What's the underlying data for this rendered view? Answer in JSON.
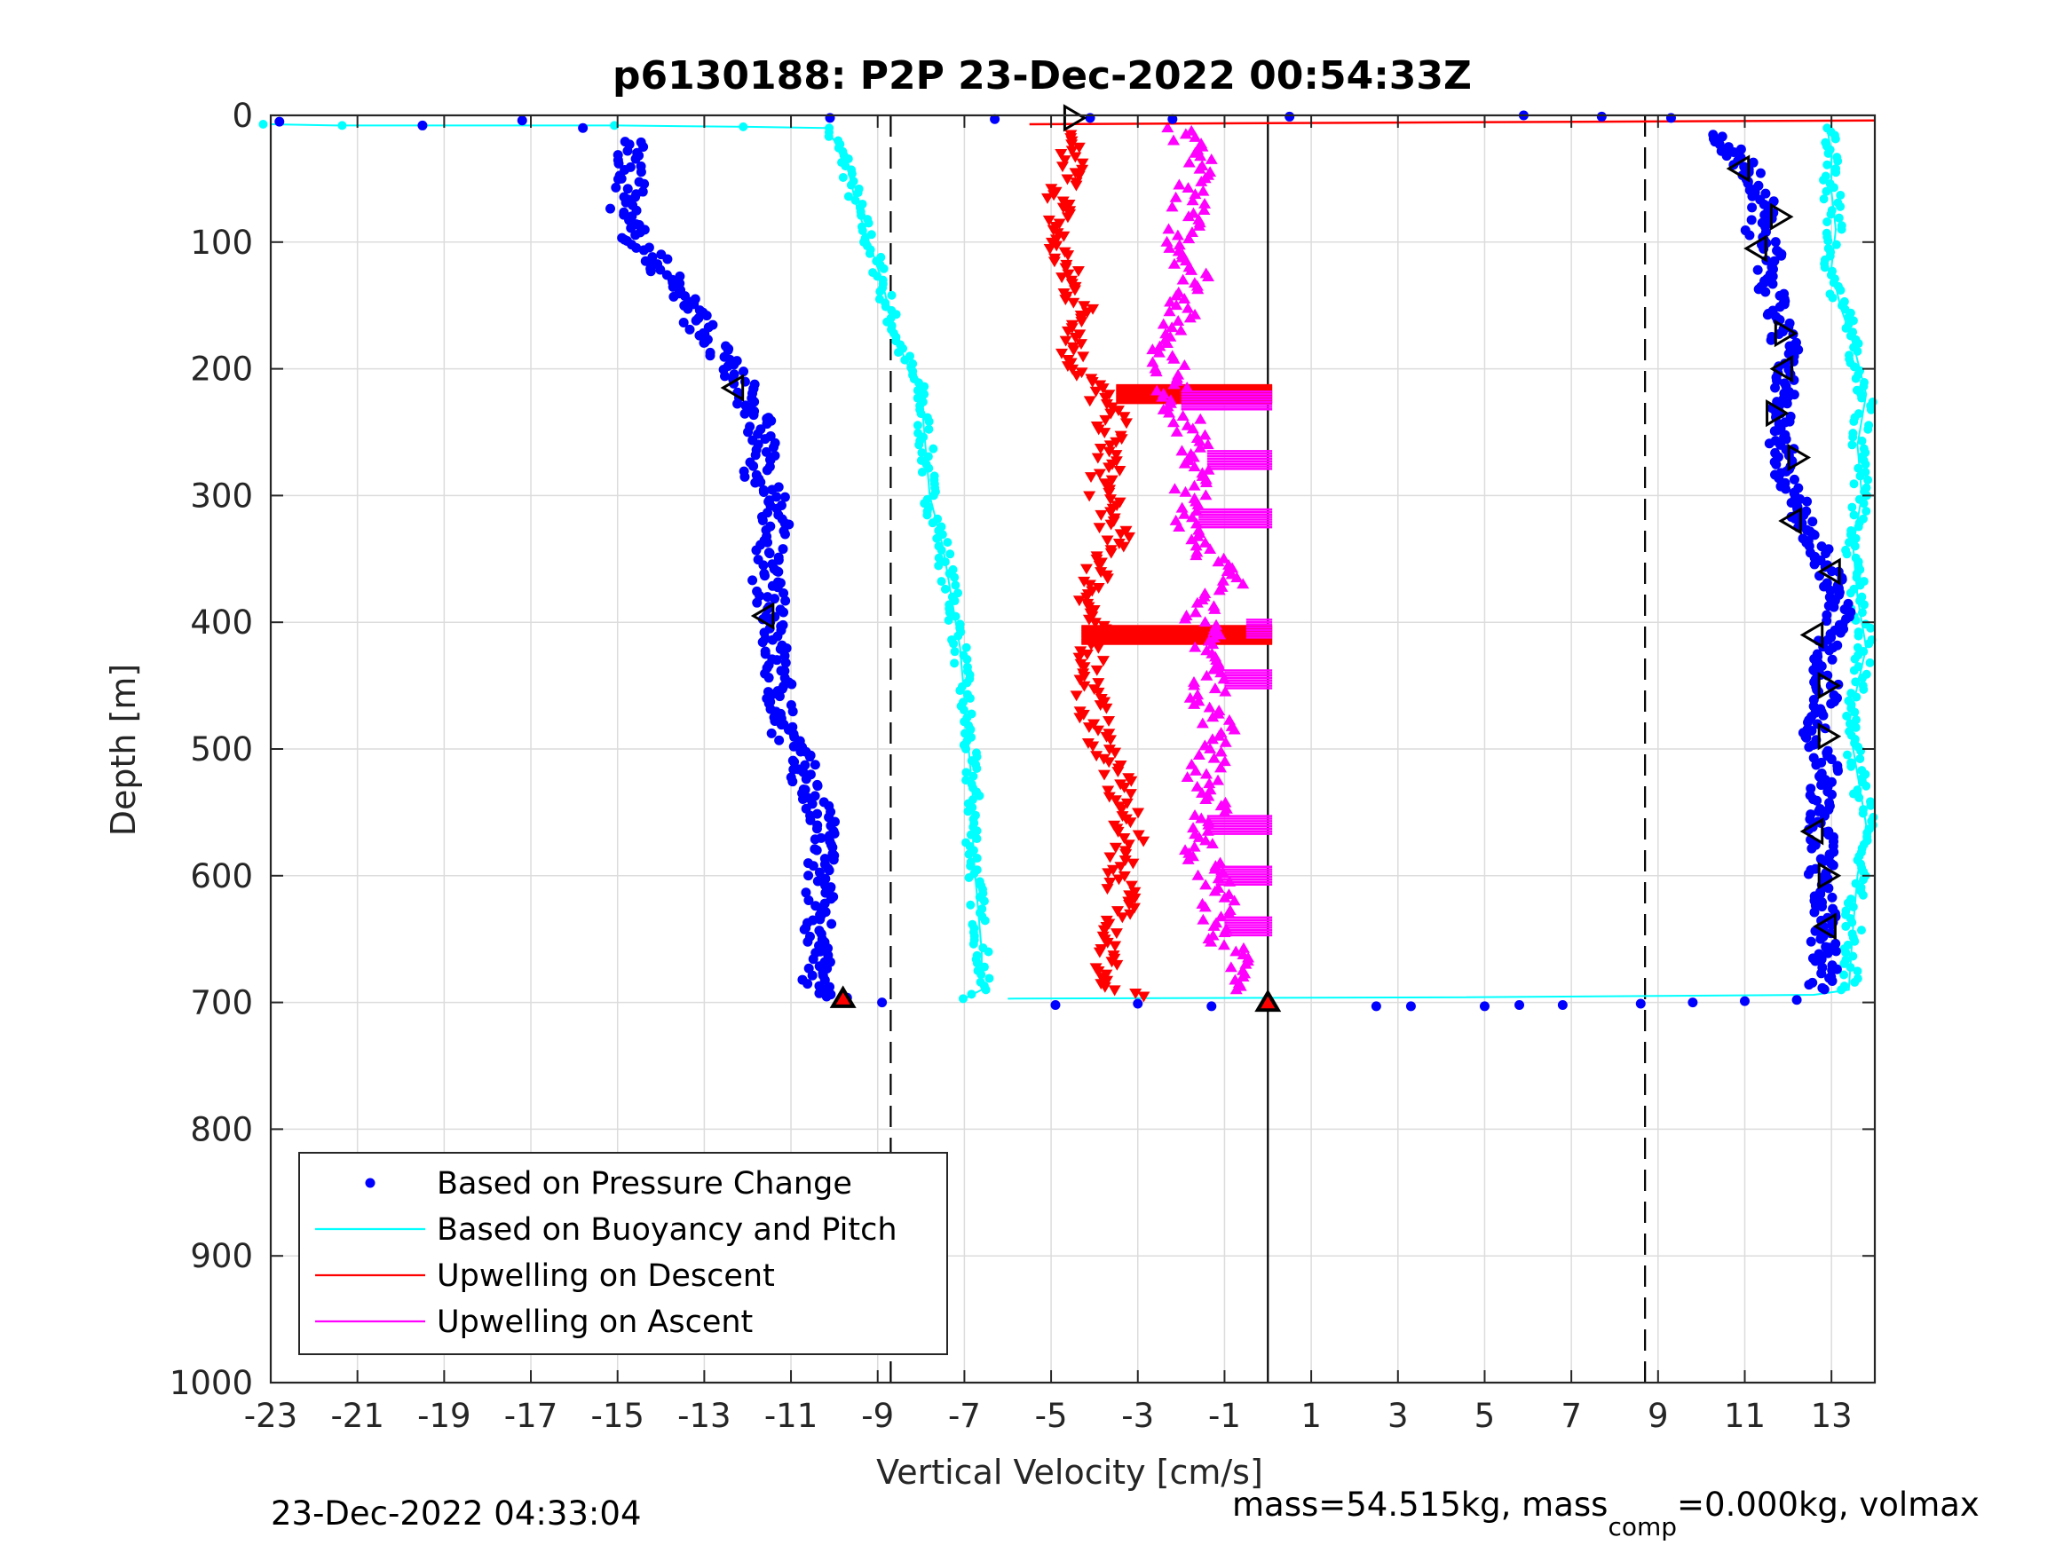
{
  "chart_data": {
    "type": "scatter",
    "title": "p6130188: P2P 23-Dec-2022 00:54:33Z",
    "xlabel": "Vertical Velocity [cm/s]",
    "ylabel": "Depth [m]",
    "xlim": [
      -23,
      14
    ],
    "ylim": [
      0,
      1000
    ],
    "y_reversed": true,
    "xticks": [
      -23,
      -21,
      -19,
      -17,
      -15,
      -13,
      -11,
      -9,
      -7,
      -5,
      -3,
      -1,
      1,
      3,
      5,
      7,
      9,
      11,
      13
    ],
    "yticks": [
      0,
      100,
      200,
      300,
      400,
      500,
      600,
      700,
      800,
      900,
      1000
    ],
    "grid": true,
    "legend_position": "bottom-left",
    "reference_lines": [
      {
        "x": -8.7,
        "style": "dashed",
        "color": "#000000"
      },
      {
        "x": 8.7,
        "style": "dashed",
        "color": "#000000"
      },
      {
        "x": 0,
        "style": "solid",
        "color": "#000000"
      }
    ],
    "series": [
      {
        "name": "Based on Pressure Change",
        "color": "#0000ff",
        "marker": "dot",
        "descent": [
          [
            -14.6,
            20
          ],
          [
            -14.8,
            40
          ],
          [
            -14.7,
            60
          ],
          [
            -14.9,
            80
          ],
          [
            -14.5,
            100
          ],
          [
            -14.0,
            120
          ],
          [
            -13.5,
            140
          ],
          [
            -13.2,
            160
          ],
          [
            -12.8,
            180
          ],
          [
            -12.5,
            200
          ],
          [
            -12.0,
            215
          ],
          [
            -11.8,
            240
          ],
          [
            -11.6,
            260
          ],
          [
            -11.8,
            280
          ],
          [
            -11.5,
            300
          ],
          [
            -11.3,
            320
          ],
          [
            -11.6,
            350
          ],
          [
            -11.5,
            380
          ],
          [
            -11.3,
            400
          ],
          [
            -11.4,
            420
          ],
          [
            -11.3,
            450
          ],
          [
            -11.2,
            480
          ],
          [
            -10.8,
            510
          ],
          [
            -10.5,
            540
          ],
          [
            -10.2,
            570
          ],
          [
            -10.4,
            600
          ],
          [
            -10.3,
            630
          ],
          [
            -10.4,
            660
          ],
          [
            -10.5,
            685
          ],
          [
            -9.8,
            697
          ]
        ],
        "ascent": [
          [
            12.7,
            690
          ],
          [
            12.9,
            670
          ],
          [
            12.8,
            650
          ],
          [
            12.9,
            630
          ],
          [
            12.7,
            610
          ],
          [
            12.8,
            590
          ],
          [
            12.8,
            570
          ],
          [
            12.7,
            550
          ],
          [
            12.8,
            530
          ],
          [
            12.9,
            510
          ],
          [
            12.6,
            490
          ],
          [
            12.8,
            470
          ],
          [
            12.9,
            450
          ],
          [
            12.8,
            430
          ],
          [
            13.0,
            410
          ],
          [
            13.2,
            390
          ],
          [
            13.0,
            370
          ],
          [
            12.8,
            350
          ],
          [
            12.5,
            330
          ],
          [
            12.3,
            310
          ],
          [
            12.0,
            290
          ],
          [
            11.8,
            270
          ],
          [
            11.9,
            250
          ],
          [
            11.8,
            230
          ],
          [
            11.9,
            210
          ],
          [
            12.0,
            190
          ],
          [
            11.8,
            170
          ],
          [
            11.7,
            150
          ],
          [
            11.5,
            130
          ],
          [
            11.6,
            110
          ],
          [
            11.3,
            90
          ],
          [
            11.5,
            70
          ],
          [
            11.2,
            50
          ],
          [
            10.8,
            30
          ],
          [
            10.2,
            15
          ]
        ],
        "surface_outliers": [
          [
            -22.8,
            5
          ],
          [
            -19.5,
            8
          ],
          [
            -17.2,
            4
          ],
          [
            -15.8,
            10
          ],
          [
            -10.1,
            2
          ],
          [
            -6.3,
            3
          ],
          [
            -4.1,
            2
          ],
          [
            -2.2,
            3
          ],
          [
            0.5,
            1
          ],
          [
            5.9,
            0
          ],
          [
            7.7,
            1
          ],
          [
            9.3,
            2
          ]
        ],
        "bottom_outliers": [
          [
            -8.9,
            700
          ],
          [
            -4.9,
            702
          ],
          [
            -3.0,
            701
          ],
          [
            -1.3,
            703
          ],
          [
            2.5,
            703
          ],
          [
            3.3,
            703
          ],
          [
            5.0,
            703
          ],
          [
            5.8,
            702
          ],
          [
            6.8,
            702
          ],
          [
            8.6,
            701
          ],
          [
            9.8,
            700
          ],
          [
            11.0,
            699
          ],
          [
            12.2,
            698
          ]
        ]
      },
      {
        "name": "Based on Buoyancy and Pitch",
        "color": "#00ffff",
        "marker": "dot-line",
        "descent": [
          [
            -23.0,
            7
          ],
          [
            -21.5,
            8
          ],
          [
            -15.0,
            8
          ],
          [
            -12.0,
            9
          ],
          [
            -10.2,
            10
          ],
          [
            -10.0,
            20
          ],
          [
            -9.7,
            40
          ],
          [
            -9.5,
            70
          ],
          [
            -9.2,
            100
          ],
          [
            -8.9,
            130
          ],
          [
            -8.7,
            160
          ],
          [
            -8.4,
            190
          ],
          [
            -8.0,
            220
          ],
          [
            -7.9,
            260
          ],
          [
            -7.8,
            300
          ],
          [
            -7.5,
            340
          ],
          [
            -7.3,
            380
          ],
          [
            -7.1,
            420
          ],
          [
            -7.0,
            460
          ],
          [
            -6.9,
            500
          ],
          [
            -6.8,
            540
          ],
          [
            -6.8,
            580
          ],
          [
            -6.7,
            620
          ],
          [
            -6.6,
            660
          ],
          [
            -6.6,
            690
          ],
          [
            -7.0,
            697
          ]
        ],
        "ascent": [
          [
            -6.0,
            697
          ],
          [
            4.0,
            696
          ],
          [
            12.6,
            694
          ],
          [
            13.4,
            690
          ],
          [
            13.5,
            640
          ],
          [
            13.6,
            600
          ],
          [
            13.8,
            560
          ],
          [
            13.6,
            520
          ],
          [
            13.4,
            480
          ],
          [
            13.8,
            420
          ],
          [
            13.6,
            380
          ],
          [
            13.5,
            340
          ],
          [
            13.7,
            300
          ],
          [
            13.6,
            260
          ],
          [
            13.8,
            220
          ],
          [
            13.5,
            180
          ],
          [
            13.2,
            150
          ],
          [
            13.0,
            120
          ],
          [
            13.1,
            90
          ],
          [
            13.0,
            60
          ],
          [
            13.0,
            30
          ],
          [
            12.9,
            10
          ]
        ]
      },
      {
        "name": "Upwelling on Descent",
        "color": "#ff0000",
        "marker": "triangle-down",
        "points": [
          [
            -4.8,
            15
          ],
          [
            -4.5,
            40
          ],
          [
            -4.8,
            70
          ],
          [
            -4.9,
            100
          ],
          [
            -4.6,
            130
          ],
          [
            -4.2,
            160
          ],
          [
            -4.5,
            190
          ],
          [
            -4.0,
            215
          ],
          [
            -3.6,
            240
          ],
          [
            -3.7,
            270
          ],
          [
            -3.8,
            300
          ],
          [
            -3.5,
            330
          ],
          [
            -3.9,
            360
          ],
          [
            -4.1,
            390
          ],
          [
            -4.0,
            420
          ],
          [
            -4.1,
            450
          ],
          [
            -4.0,
            480
          ],
          [
            -3.6,
            510
          ],
          [
            -3.4,
            540
          ],
          [
            -3.2,
            570
          ],
          [
            -3.4,
            600
          ],
          [
            -3.3,
            630
          ],
          [
            -3.7,
            660
          ],
          [
            -3.8,
            690
          ],
          [
            -2.8,
            695
          ]
        ],
        "spikes": [
          [
            -3.5,
            220
          ],
          [
            -4.3,
            410
          ]
        ]
      },
      {
        "name": "Upwelling on Ascent",
        "color": "#ff00ff",
        "marker": "triangle-up",
        "points": [
          [
            -2.2,
            10
          ],
          [
            -1.5,
            40
          ],
          [
            -1.8,
            70
          ],
          [
            -2.0,
            100
          ],
          [
            -1.6,
            130
          ],
          [
            -2.1,
            160
          ],
          [
            -2.3,
            190
          ],
          [
            -2.2,
            220
          ],
          [
            -1.8,
            250
          ],
          [
            -1.6,
            280
          ],
          [
            -1.9,
            310
          ],
          [
            -1.4,
            340
          ],
          [
            -0.9,
            370
          ],
          [
            -1.6,
            400
          ],
          [
            -1.2,
            430
          ],
          [
            -1.4,
            460
          ],
          [
            -1.0,
            490
          ],
          [
            -1.5,
            520
          ],
          [
            -1.3,
            550
          ],
          [
            -1.6,
            580
          ],
          [
            -1.1,
            610
          ],
          [
            -1.2,
            640
          ],
          [
            -0.7,
            670
          ],
          [
            -0.8,
            690
          ]
        ],
        "spikes": [
          [
            -2.0,
            225
          ],
          [
            -1.4,
            272
          ],
          [
            -1.6,
            318
          ],
          [
            -0.5,
            405
          ],
          [
            -1.0,
            445
          ],
          [
            -1.4,
            560
          ],
          [
            -1.2,
            600
          ],
          [
            -1.0,
            640
          ]
        ]
      }
    ],
    "surface_line": {
      "color": "#ff0000",
      "from": [
        -5.5,
        7
      ],
      "to": [
        14,
        4
      ]
    },
    "turnaround_markers": [
      {
        "x": -9.8,
        "y": 697
      },
      {
        "x": 0,
        "y": 700
      }
    ],
    "pitch_markers": [
      [
        -4.5,
        2
      ],
      [
        -12.3,
        215
      ],
      [
        -11.6,
        395
      ],
      [
        10.9,
        42
      ],
      [
        11.8,
        80
      ],
      [
        11.3,
        105
      ],
      [
        11.9,
        172
      ],
      [
        11.9,
        200
      ],
      [
        11.7,
        235
      ],
      [
        12.2,
        270
      ],
      [
        12.1,
        320
      ],
      [
        13.0,
        360
      ],
      [
        12.6,
        410
      ],
      [
        12.9,
        450
      ],
      [
        12.9,
        490
      ],
      [
        12.6,
        565
      ],
      [
        12.9,
        600
      ],
      [
        12.9,
        640
      ]
    ],
    "footer_left": "23-Dec-2022 04:33:04",
    "footer_right": {
      "text1": "mass=54.515kg, mass",
      "subscript": "comp",
      "text2": "=0.000kg, volmax"
    }
  }
}
